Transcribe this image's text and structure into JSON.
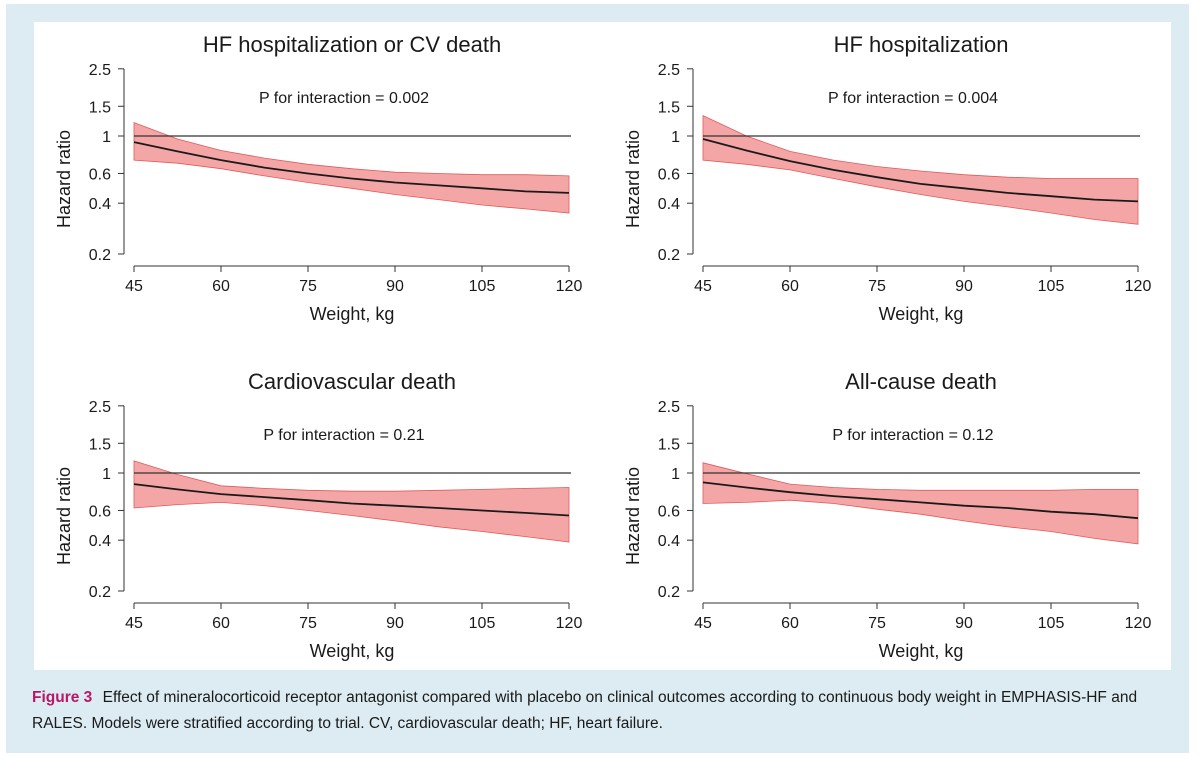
{
  "figure": {
    "label": "Figure 3",
    "caption": "Effect of mineralocorticoid receptor antagonist compared with placebo on clinical outcomes according to continuous body weight in EMPHASIS-HF and RALES. Models were stratified according to trial. CV, cardiovascular death; HF, heart failure."
  },
  "colors": {
    "band": "#f4a6a6",
    "band_edge": "#e05a5a",
    "line": "#1a1a1a",
    "ref_line": "#333333"
  },
  "chart_data": [
    {
      "type": "line",
      "title": "HF hospitalization or CV death",
      "annotation": "P for interaction = 0.002",
      "xlabel": "Weight, kg",
      "ylabel": "Hazard ratio",
      "xticks": [
        45,
        60,
        75,
        90,
        105,
        120
      ],
      "yticks": [
        0.2,
        0.4,
        0.6,
        1,
        1.5,
        2.5
      ],
      "ytick_labels": [
        "0.2",
        "0.4",
        "0.6",
        "1",
        "1.5",
        "2.5"
      ],
      "xlim": [
        45,
        120
      ],
      "ylim": [
        0.2,
        2.5
      ],
      "yscale": "log",
      "reference_line": 1,
      "x": [
        45,
        52.5,
        60,
        67.5,
        75,
        82.5,
        90,
        97.5,
        105,
        112.5,
        120
      ],
      "estimate": [
        0.92,
        0.81,
        0.72,
        0.65,
        0.6,
        0.56,
        0.53,
        0.51,
        0.49,
        0.47,
        0.46
      ],
      "lower": [
        0.72,
        0.69,
        0.64,
        0.58,
        0.53,
        0.49,
        0.45,
        0.42,
        0.39,
        0.37,
        0.35
      ],
      "upper": [
        1.2,
        0.96,
        0.82,
        0.74,
        0.68,
        0.64,
        0.61,
        0.6,
        0.59,
        0.59,
        0.58
      ]
    },
    {
      "type": "line",
      "title": "HF hospitalization",
      "annotation": "P for interaction = 0.004",
      "xlabel": "Weight, kg",
      "ylabel": "Hazard ratio",
      "xticks": [
        45,
        60,
        75,
        90,
        105,
        120
      ],
      "yticks": [
        0.2,
        0.4,
        0.6,
        1,
        1.5,
        2.5
      ],
      "ytick_labels": [
        "0.2",
        "0.4",
        "0.6",
        "1",
        "1.5",
        "2.5"
      ],
      "xlim": [
        45,
        120
      ],
      "ylim": [
        0.2,
        2.5
      ],
      "yscale": "log",
      "reference_line": 1,
      "x": [
        45,
        52.5,
        60,
        67.5,
        75,
        82.5,
        90,
        97.5,
        105,
        112.5,
        120
      ],
      "estimate": [
        0.96,
        0.82,
        0.71,
        0.63,
        0.57,
        0.52,
        0.49,
        0.46,
        0.44,
        0.42,
        0.41
      ],
      "lower": [
        0.72,
        0.68,
        0.63,
        0.56,
        0.5,
        0.45,
        0.41,
        0.38,
        0.35,
        0.32,
        0.3
      ],
      "upper": [
        1.32,
        1.0,
        0.81,
        0.72,
        0.66,
        0.62,
        0.59,
        0.57,
        0.56,
        0.56,
        0.56
      ]
    },
    {
      "type": "line",
      "title": "Cardiovascular death",
      "annotation": "P for interaction = 0.21",
      "xlabel": "Weight, kg",
      "ylabel": "Hazard ratio",
      "xticks": [
        45,
        60,
        75,
        90,
        105,
        120
      ],
      "yticks": [
        0.2,
        0.4,
        0.6,
        1,
        1.5,
        2.5
      ],
      "ytick_labels": [
        "0.2",
        "0.4",
        "0.6",
        "1",
        "1.5",
        "2.5"
      ],
      "xlim": [
        45,
        120
      ],
      "ylim": [
        0.2,
        2.5
      ],
      "yscale": "log",
      "reference_line": 1,
      "x": [
        45,
        52.5,
        60,
        67.5,
        75,
        82.5,
        90,
        97.5,
        105,
        112.5,
        120
      ],
      "estimate": [
        0.86,
        0.8,
        0.75,
        0.72,
        0.69,
        0.66,
        0.64,
        0.62,
        0.6,
        0.58,
        0.56
      ],
      "lower": [
        0.62,
        0.65,
        0.67,
        0.64,
        0.6,
        0.56,
        0.52,
        0.48,
        0.45,
        0.42,
        0.39
      ],
      "upper": [
        1.18,
        0.98,
        0.84,
        0.81,
        0.79,
        0.78,
        0.78,
        0.79,
        0.8,
        0.81,
        0.82
      ]
    },
    {
      "type": "line",
      "title": "All-cause death",
      "annotation": "P for interaction = 0.12",
      "xlabel": "Weight, kg",
      "ylabel": "Hazard ratio",
      "xticks": [
        45,
        60,
        75,
        90,
        105,
        120
      ],
      "yticks": [
        0.2,
        0.4,
        0.6,
        1,
        1.5,
        2.5
      ],
      "ytick_labels": [
        "0.2",
        "0.4",
        "0.6",
        "1",
        "1.5",
        "2.5"
      ],
      "xlim": [
        45,
        120
      ],
      "ylim": [
        0.2,
        2.5
      ],
      "yscale": "log",
      "reference_line": 1,
      "x": [
        45,
        52.5,
        60,
        67.5,
        75,
        82.5,
        90,
        97.5,
        105,
        112.5,
        120
      ],
      "estimate": [
        0.88,
        0.82,
        0.77,
        0.73,
        0.7,
        0.67,
        0.64,
        0.62,
        0.59,
        0.57,
        0.54
      ],
      "lower": [
        0.66,
        0.67,
        0.69,
        0.66,
        0.61,
        0.57,
        0.52,
        0.48,
        0.45,
        0.41,
        0.38
      ],
      "upper": [
        1.15,
        0.99,
        0.86,
        0.82,
        0.8,
        0.79,
        0.79,
        0.79,
        0.79,
        0.8,
        0.8
      ]
    }
  ]
}
